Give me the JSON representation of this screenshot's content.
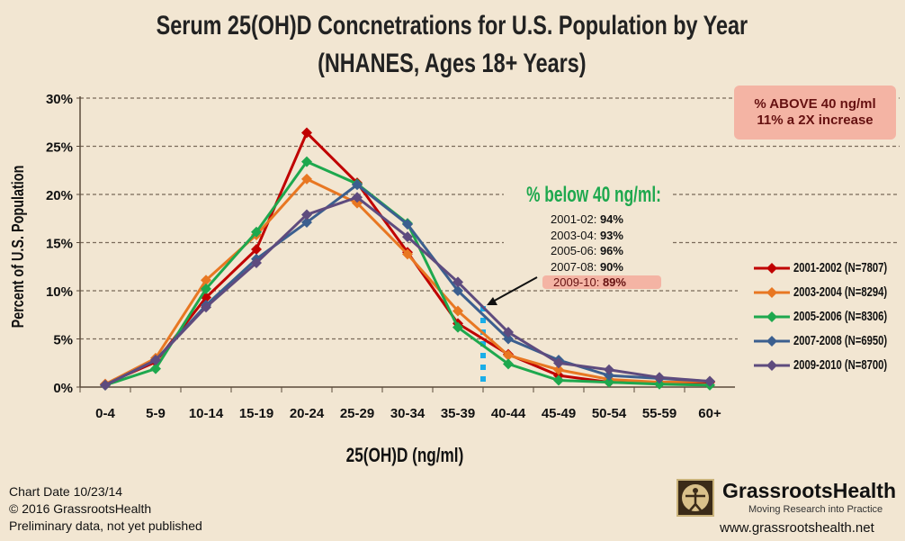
{
  "chart_data": {
    "type": "line",
    "title": "Serum 25(OH)D Concnetrations for U.S. Population by Year",
    "subtitle": "(NHANES, Ages 18+ Years)",
    "xlabel": "25(OH)D (ng/ml)",
    "ylabel": "Percent of U.S. Population",
    "categories": [
      "0-4",
      "5-9",
      "10-14",
      "15-19",
      "20-24",
      "25-29",
      "30-34",
      "35-39",
      "40-44",
      "45-49",
      "50-54",
      "55-59",
      "60+"
    ],
    "yticks": [
      "0%",
      "5%",
      "10%",
      "15%",
      "20%",
      "25%",
      "30%"
    ],
    "ylim": [
      0,
      30
    ],
    "grid": "horizontal dashed",
    "legend_position": "right",
    "series": [
      {
        "name": "2001-2002 (N=7807)",
        "color": "#c00000",
        "values": [
          0.3,
          2.6,
          9.3,
          14.3,
          26.4,
          21.2,
          14.0,
          6.6,
          3.4,
          1.2,
          0.5,
          0.4,
          0.5
        ]
      },
      {
        "name": "2003-2004 (N=8294)",
        "color": "#e87722",
        "values": [
          0.3,
          3.0,
          11.1,
          15.8,
          21.6,
          19.1,
          13.8,
          7.9,
          3.3,
          1.8,
          0.8,
          0.5,
          0.6
        ]
      },
      {
        "name": "2005-2006 (N=8306)",
        "color": "#1ea84e",
        "values": [
          0.2,
          1.9,
          10.2,
          16.1,
          23.4,
          21.1,
          17.0,
          6.2,
          2.4,
          0.7,
          0.5,
          0.3,
          0.2
        ]
      },
      {
        "name": "2007-2008 (N=6950)",
        "color": "#3b5f8f",
        "values": [
          0.2,
          2.8,
          8.5,
          13.3,
          17.1,
          21.0,
          16.9,
          10.0,
          5.0,
          2.8,
          1.2,
          0.9,
          0.6
        ]
      },
      {
        "name": "2009-2010 (N=8700)",
        "color": "#5e4b7e",
        "values": [
          0.2,
          2.8,
          8.3,
          12.9,
          17.9,
          19.7,
          15.6,
          10.9,
          5.7,
          2.5,
          1.8,
          1.0,
          0.6
        ]
      }
    ],
    "threshold_marker": {
      "at": "40 ng/ml",
      "color": "#1aaee8"
    }
  },
  "callout": {
    "line1": "% ABOVE 40 ng/ml",
    "line2": "11%  a 2X increase"
  },
  "below40": {
    "title": "% below 40 ng/ml:",
    "rows": [
      {
        "label": "2001-02:",
        "value": "94%"
      },
      {
        "label": "2003-04:",
        "value": "93%"
      },
      {
        "label": "2005-06:",
        "value": "96%"
      },
      {
        "label": "2007-08:",
        "value": "90%"
      },
      {
        "label": "2009-10:",
        "value": "89%"
      }
    ]
  },
  "footer": {
    "line1": "Chart Date 10/23/14",
    "line2": "© 2016 GrassrootsHealth",
    "line3": "Preliminary data, not yet published"
  },
  "brand": {
    "name": "GrassrootsHealth",
    "tagline": "Moving Research into Practice",
    "url": "www.grassrootshealth.net"
  }
}
